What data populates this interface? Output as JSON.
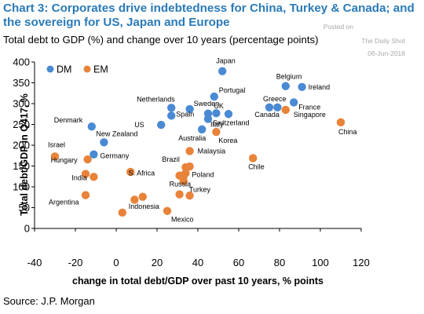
{
  "header": {
    "title": "Chart 3: Corporates drive indebtedness for China, Turkey & Canada; and the sovereign for US, Japan and Europe",
    "subtitle": "Total debt to GDP (%) and change over 10 years (percentage points)",
    "watermark_posted": "Posted on",
    "watermark_source": "The Daily Shot",
    "watermark_date": "06-Jun-2018"
  },
  "footer": {
    "source": "Source: J.P. Morgan"
  },
  "chart_data": {
    "type": "scatter",
    "xlabel": "change in total debt/GDP over past 10 years, % points",
    "ylabel": "Total debt/GDP in Q417, %",
    "xlim": [
      -40,
      120
    ],
    "ylim": [
      0,
      400
    ],
    "x_ticks": [
      -40,
      -20,
      0,
      20,
      40,
      60,
      80,
      100,
      120
    ],
    "y_ticks": [
      0,
      50,
      100,
      150,
      200,
      250,
      300,
      350,
      400
    ],
    "grid": false,
    "legend_position": "top-left",
    "series": [
      {
        "name": "DM",
        "color": "#4a8ad4",
        "points": [
          {
            "label": "Japan",
            "x": 52,
            "y": 378
          },
          {
            "label": "Belgium",
            "x": 83,
            "y": 342
          },
          {
            "label": "Ireland",
            "x": 91,
            "y": 340
          },
          {
            "label": "Portugal",
            "x": 48,
            "y": 317
          },
          {
            "label": "Netherlands",
            "x": 27,
            "y": 290
          },
          {
            "label": "Sweden",
            "x": 36,
            "y": 287
          },
          {
            "label": "France",
            "x": 87,
            "y": 303
          },
          {
            "label": "Greece",
            "x": 75,
            "y": 291
          },
          {
            "label": "Canada",
            "x": 79,
            "y": 291
          },
          {
            "label": "UK",
            "x": 49,
            "y": 277
          },
          {
            "label": "",
            "x": 45,
            "y": 276
          },
          {
            "label": "Switzerland",
            "x": 55,
            "y": 275
          },
          {
            "label": "Spain",
            "x": 27,
            "y": 271
          },
          {
            "label": "Italy",
            "x": 45,
            "y": 263
          },
          {
            "label": "US",
            "x": 22,
            "y": 249
          },
          {
            "label": "Australia",
            "x": 42,
            "y": 238
          },
          {
            "label": "Denmark",
            "x": -12,
            "y": 245
          },
          {
            "label": "New Zealand",
            "x": -6,
            "y": 207
          },
          {
            "label": "Germany",
            "x": -11,
            "y": 178
          }
        ]
      },
      {
        "name": "EM",
        "color": "#e8833a",
        "points": [
          {
            "label": "Singapore",
            "x": 83,
            "y": 285
          },
          {
            "label": "China",
            "x": 110,
            "y": 255
          },
          {
            "label": "Korea",
            "x": 49,
            "y": 232
          },
          {
            "label": "Malaysia",
            "x": 36,
            "y": 186
          },
          {
            "label": "Chile",
            "x": 67,
            "y": 169
          },
          {
            "label": "Israel",
            "x": -30,
            "y": 173
          },
          {
            "label": "Hungary",
            "x": -14,
            "y": 166
          },
          {
            "label": "Brazil",
            "x": 34,
            "y": 147
          },
          {
            "label": "",
            "x": 36,
            "y": 149
          },
          {
            "label": "Poland",
            "x": 34,
            "y": 133
          },
          {
            "label": "",
            "x": 7,
            "y": 136
          },
          {
            "label": "India",
            "x": -11,
            "y": 124
          },
          {
            "label": "",
            "x": -15,
            "y": 131
          },
          {
            "label": "S. Africa",
            "x": 31,
            "y": 127
          },
          {
            "label": "",
            "x": 33,
            "y": 125
          },
          {
            "label": "Turkey",
            "x": 33,
            "y": 114
          },
          {
            "label": "Russia",
            "x": 31,
            "y": 82
          },
          {
            "label": "",
            "x": 36,
            "y": 79
          },
          {
            "label": "Argentina",
            "x": -15,
            "y": 80
          },
          {
            "label": "",
            "x": 13,
            "y": 76
          },
          {
            "label": "",
            "x": 9,
            "y": 69
          },
          {
            "label": "Indonesia",
            "x": 3,
            "y": 38
          },
          {
            "label": "Mexico",
            "x": 25,
            "y": 42
          }
        ]
      }
    ]
  }
}
